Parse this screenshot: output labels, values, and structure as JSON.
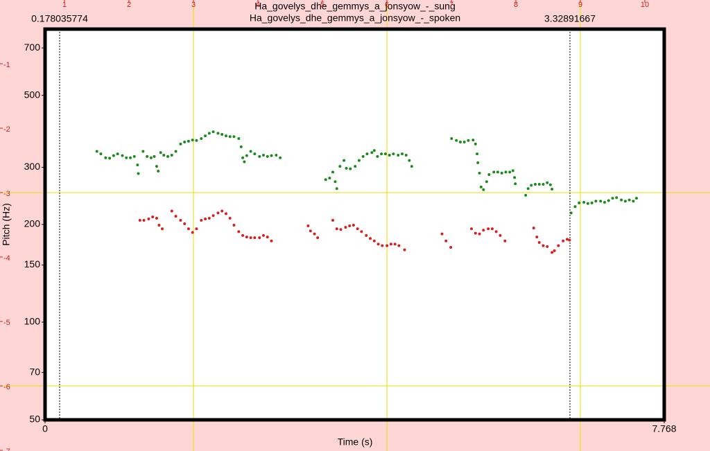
{
  "chart_data": {
    "type": "scatter",
    "titles": [
      "Ha_govelys_dhe_gemmys_a_jonsyow_-_sung",
      "Ha_govelys_dhe_gemmys_a_jonsyow_-_spoken"
    ],
    "cursor_labels": [
      "0.178035774",
      "3.32891667"
    ],
    "xlabel": "Time (s)",
    "ylabel": "Pitch (Hz)",
    "xlim": [
      0,
      7.768
    ],
    "xticks": [
      0,
      7.768
    ],
    "ylim": [
      50,
      800
    ],
    "yticks": [
      50,
      70,
      100,
      150,
      200,
      300,
      500,
      700
    ],
    "log_y": true,
    "rulers": {
      "top": [
        1,
        2,
        3,
        4,
        5,
        6,
        7,
        8,
        9,
        10
      ],
      "left": [
        -1,
        -2,
        -3,
        -4,
        -5,
        -6,
        -7
      ]
    },
    "series": [
      {
        "name": "sung",
        "color": "#1e8a1e",
        "x": [
          0.65,
          0.7,
          0.76,
          0.81,
          0.86,
          0.91,
          0.97,
          1.02,
          1.07,
          1.12,
          1.16,
          1.17,
          1.23,
          1.28,
          1.33,
          1.37,
          1.4,
          1.42,
          1.45,
          1.49,
          1.54,
          1.59,
          1.64,
          1.7,
          1.75,
          1.8,
          1.85,
          1.9,
          1.96,
          2.01,
          2.06,
          2.11,
          2.17,
          2.22,
          2.27,
          2.32,
          2.37,
          2.43,
          2.46,
          2.48,
          2.5,
          2.53,
          2.58,
          2.63,
          2.69,
          2.74,
          2.79,
          2.84,
          2.9,
          2.95,
          3.52,
          3.57,
          3.61,
          3.64,
          3.66,
          3.7,
          3.75,
          3.78,
          3.83,
          3.89,
          3.94,
          3.99,
          4.04,
          4.1,
          4.13,
          4.17,
          4.22,
          4.27,
          4.32,
          4.37,
          4.43,
          4.48,
          4.53,
          4.57,
          4.6,
          5.1,
          5.16,
          5.21,
          5.26,
          5.31,
          5.37,
          5.4,
          5.42,
          5.43,
          5.45,
          5.47,
          5.5,
          5.54,
          5.57,
          5.63,
          5.68,
          5.73,
          5.78,
          5.83,
          5.87,
          5.89,
          5.9,
          6.03,
          6.06,
          6.1,
          6.15,
          6.2,
          6.25,
          6.3,
          6.34,
          6.36,
          6.6,
          6.65,
          6.7,
          6.76,
          6.81,
          6.86,
          6.91,
          6.97,
          7.02,
          7.07,
          7.12,
          7.17,
          7.23,
          7.28,
          7.33,
          7.38,
          7.42
        ],
        "values": [
          336,
          330,
          321,
          320,
          326,
          330,
          326,
          321,
          321,
          324,
          305,
          287,
          336,
          324,
          321,
          324,
          302,
          292,
          333,
          327,
          324,
          327,
          336,
          354,
          359,
          361,
          364,
          363,
          368,
          375,
          382,
          386,
          382,
          379,
          375,
          373,
          373,
          368,
          347,
          321,
          312,
          326,
          336,
          330,
          324,
          327,
          324,
          326,
          327,
          321,
          275,
          278,
          290,
          271,
          258,
          302,
          315,
          298,
          297,
          302,
          315,
          324,
          330,
          333,
          338,
          324,
          330,
          330,
          327,
          330,
          327,
          330,
          327,
          315,
          302,
          368,
          363,
          359,
          359,
          363,
          364,
          354,
          330,
          310,
          288,
          261,
          256,
          271,
          285,
          290,
          290,
          288,
          290,
          290,
          293,
          279,
          267,
          246,
          258,
          264,
          266,
          266,
          266,
          269,
          265,
          257,
          217,
          227,
          233,
          234,
          232,
          233,
          236,
          236,
          234,
          237,
          241,
          242,
          238,
          236,
          238,
          236,
          241
        ]
      },
      {
        "name": "spoken",
        "color": "#d42020",
        "x": [
          1.19,
          1.24,
          1.3,
          1.35,
          1.4,
          1.43,
          1.47,
          1.59,
          1.64,
          1.7,
          1.75,
          1.8,
          1.85,
          1.9,
          1.96,
          2.01,
          2.06,
          2.11,
          2.17,
          2.22,
          2.27,
          2.32,
          2.37,
          2.43,
          2.48,
          2.53,
          2.58,
          2.63,
          2.69,
          2.74,
          2.79,
          2.84,
          3.3,
          3.33,
          3.38,
          3.42,
          3.61,
          3.66,
          3.71,
          3.77,
          3.82,
          3.87,
          3.92,
          3.97,
          4.03,
          4.08,
          4.13,
          4.18,
          4.23,
          4.29,
          4.34,
          4.39,
          4.44,
          4.51,
          4.98,
          5.03,
          5.09,
          5.35,
          5.4,
          5.45,
          5.5,
          5.56,
          5.61,
          5.66,
          5.71,
          5.77,
          6.13,
          6.17,
          6.2,
          6.25,
          6.3,
          6.36,
          6.39,
          6.44,
          6.5,
          6.55,
          6.58
        ],
        "values": [
          206,
          206,
          208,
          211,
          209,
          199,
          194,
          220,
          212,
          206,
          201,
          194,
          189,
          194,
          206,
          208,
          209,
          213,
          217,
          220,
          216,
          209,
          199,
          190,
          185,
          183,
          182,
          182,
          182,
          185,
          183,
          178,
          198,
          191,
          187,
          182,
          206,
          194,
          193,
          196,
          198,
          199,
          194,
          190,
          185,
          181,
          178,
          174,
          172,
          172,
          174,
          174,
          172,
          167,
          187,
          178,
          170,
          194,
          188,
          187,
          192,
          194,
          194,
          190,
          185,
          178,
          195,
          183,
          176,
          172,
          171,
          164,
          166,
          172,
          178,
          180,
          179
        ]
      }
    ]
  }
}
